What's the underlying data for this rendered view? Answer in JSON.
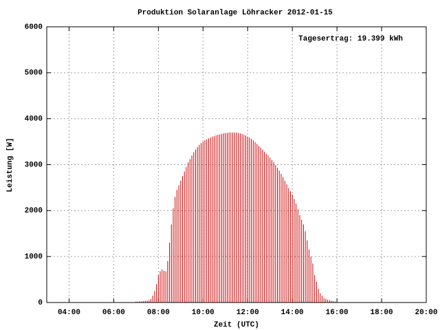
{
  "chart_data": {
    "type": "impulse",
    "title": "Produktion Solaranlage Löhracker 2012-01-15",
    "annotation": "Tagesertrag: 19.399 kWh",
    "x_label": "Zeit (UTC)",
    "y_label": "Leistung [W]",
    "color": "#cc0000",
    "grid": true,
    "xlim": [
      180,
      1200
    ],
    "ylim": [
      0,
      6000
    ],
    "xticks": [
      {
        "value": 240,
        "label": "04:00"
      },
      {
        "value": 360,
        "label": "06:00"
      },
      {
        "value": 480,
        "label": "08:00"
      },
      {
        "value": 600,
        "label": "10:00"
      },
      {
        "value": 720,
        "label": "12:00"
      },
      {
        "value": 840,
        "label": "14:00"
      },
      {
        "value": 960,
        "label": "16:00"
      },
      {
        "value": 1080,
        "label": "18:00"
      },
      {
        "value": 1200,
        "label": "20:00"
      }
    ],
    "yticks": [
      0,
      1000,
      2000,
      3000,
      4000,
      5000,
      6000
    ],
    "x": [
      420,
      425,
      430,
      435,
      440,
      445,
      450,
      455,
      460,
      465,
      470,
      475,
      480,
      485,
      490,
      495,
      500,
      505,
      510,
      515,
      520,
      525,
      530,
      535,
      540,
      545,
      550,
      555,
      560,
      565,
      570,
      575,
      580,
      585,
      590,
      595,
      600,
      605,
      610,
      615,
      620,
      625,
      630,
      635,
      640,
      645,
      650,
      655,
      660,
      665,
      670,
      675,
      680,
      685,
      690,
      695,
      700,
      705,
      710,
      715,
      720,
      725,
      730,
      735,
      740,
      745,
      750,
      755,
      760,
      765,
      770,
      775,
      780,
      785,
      790,
      795,
      800,
      805,
      810,
      815,
      820,
      825,
      830,
      835,
      840,
      845,
      850,
      855,
      860,
      865,
      870,
      875,
      880,
      885,
      890,
      895,
      900,
      905,
      910,
      915,
      920,
      925,
      930,
      935,
      940,
      945,
      950,
      955,
      960
    ],
    "values": [
      20,
      20,
      25,
      25,
      30,
      35,
      40,
      50,
      80,
      150,
      250,
      400,
      600,
      680,
      720,
      690,
      680,
      900,
      1300,
      1700,
      2050,
      2300,
      2450,
      2550,
      2650,
      2750,
      2850,
      2950,
      3050,
      3120,
      3200,
      3270,
      3330,
      3380,
      3430,
      3470,
      3500,
      3530,
      3550,
      3570,
      3590,
      3610,
      3620,
      3640,
      3650,
      3660,
      3670,
      3680,
      3690,
      3690,
      3700,
      3700,
      3700,
      3700,
      3700,
      3690,
      3680,
      3670,
      3650,
      3630,
      3610,
      3590,
      3560,
      3530,
      3490,
      3450,
      3410,
      3370,
      3330,
      3280,
      3240,
      3200,
      3150,
      3100,
      3050,
      2990,
      2930,
      2870,
      2800,
      2730,
      2650,
      2570,
      2490,
      2420,
      2350,
      2250,
      2150,
      2030,
      1900,
      1800,
      1700,
      1550,
      1350,
      1150,
      1000,
      850,
      600,
      450,
      300,
      200,
      150,
      100,
      80,
      60,
      50,
      40,
      30,
      20,
      15
    ]
  }
}
